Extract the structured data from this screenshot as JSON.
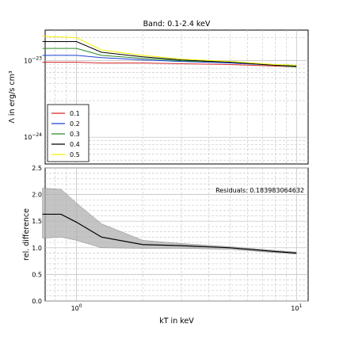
{
  "chart_data": [
    {
      "type": "line",
      "title": "Band: 0.1-2.4 keV",
      "xlabel": "",
      "ylabel": "Λ in erg/s cm³",
      "xscale": "log",
      "yscale": "log",
      "x": [
        0.7,
        0.85,
        1.0,
        1.3,
        2.0,
        3.0,
        5.0,
        8.0,
        10.0
      ],
      "ytick_labels": [
        {
          "base": "10",
          "exp": "−23",
          "value_exp": -23
        },
        {
          "base": "10",
          "exp": "−24",
          "value_exp": -24
        }
      ],
      "ylim_exp": [
        -24.35,
        -22.6
      ],
      "grid": true,
      "legend_position": "lower-left",
      "series": [
        {
          "name": "0.1",
          "color": "#d62728",
          "y_exp": [
            -23.02,
            -23.02,
            -23.02,
            -23.03,
            -23.03,
            -23.04,
            -23.05,
            -23.07,
            -23.08
          ]
        },
        {
          "name": "0.2",
          "color": "#1f3fd6",
          "y_exp": [
            -22.93,
            -22.93,
            -22.93,
            -22.96,
            -22.99,
            -23.01,
            -23.03,
            -23.06,
            -23.08
          ]
        },
        {
          "name": "0.3",
          "color": "#2a8a2a",
          "y_exp": [
            -22.84,
            -22.84,
            -22.84,
            -22.93,
            -22.97,
            -23.0,
            -23.02,
            -23.06,
            -23.08
          ]
        },
        {
          "name": "0.4",
          "color": "#000000",
          "y_exp": [
            -22.75,
            -22.75,
            -22.75,
            -22.89,
            -22.95,
            -22.99,
            -23.02,
            -23.06,
            -23.07
          ]
        },
        {
          "name": "0.5",
          "color": "#f2f200",
          "y_exp": [
            -22.68,
            -22.69,
            -22.7,
            -22.86,
            -22.93,
            -22.98,
            -23.01,
            -23.05,
            -23.06
          ]
        }
      ]
    },
    {
      "type": "line",
      "title": "",
      "xlabel": "kT in keV",
      "ylabel": "rel. difference",
      "xscale": "log",
      "x": [
        0.7,
        0.85,
        1.0,
        1.3,
        2.0,
        3.0,
        5.0,
        8.0,
        10.0
      ],
      "xtick_labels": [
        {
          "base": "10",
          "exp": "0",
          "value": 1
        },
        {
          "base": "10",
          "exp": "1",
          "value": 10
        }
      ],
      "yticks": [
        "0.0",
        "0.5",
        "1.0",
        "1.5",
        "2.0",
        "2.5"
      ],
      "ylim": [
        0,
        2.5
      ],
      "grid": true,
      "annotation": "Residuals: 0.183983064632",
      "series": [
        {
          "name": "",
          "color": "#000000",
          "values": [
            1.63,
            1.63,
            1.48,
            1.2,
            1.06,
            1.04,
            1.0,
            0.93,
            0.9
          ]
        }
      ],
      "band": {
        "upper": [
          2.12,
          2.1,
          1.84,
          1.45,
          1.14,
          1.08,
          1.02,
          0.95,
          0.92
        ],
        "lower": [
          1.18,
          1.2,
          1.14,
          1.0,
          0.99,
          0.99,
          0.97,
          0.91,
          0.88
        ],
        "color": "#b0b0b0"
      }
    }
  ]
}
